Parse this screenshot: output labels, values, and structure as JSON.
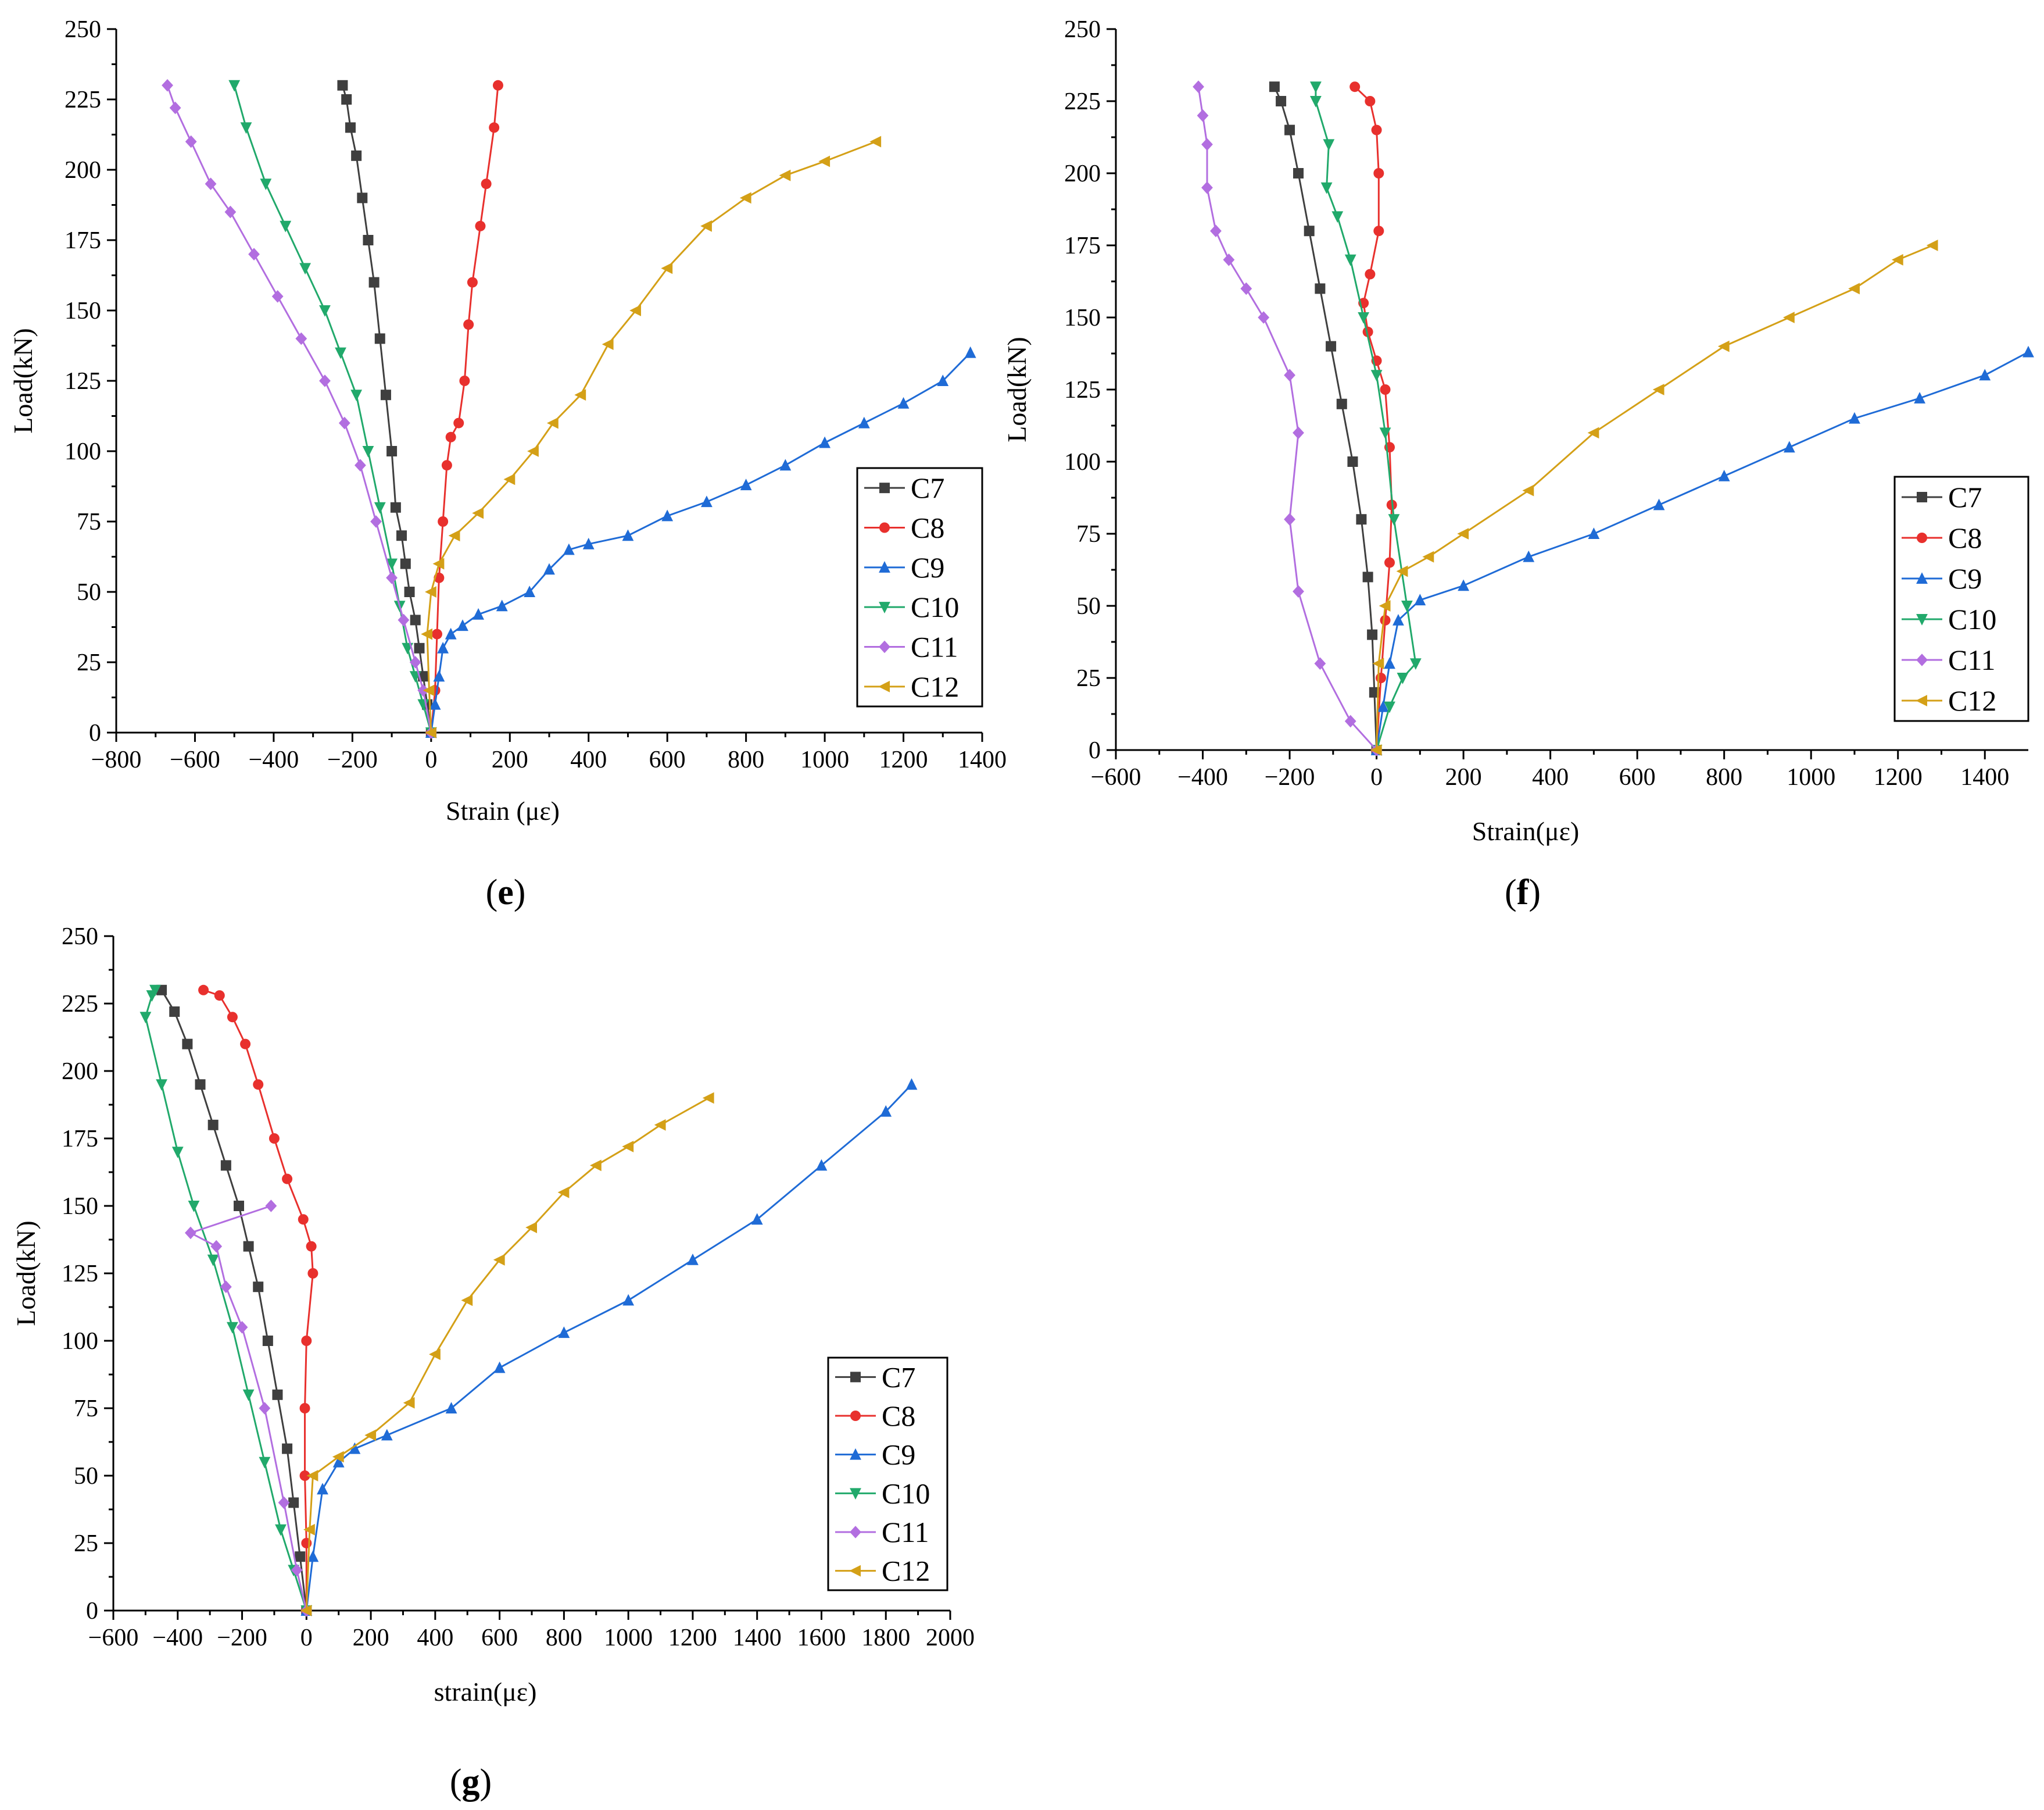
{
  "figure": {
    "series_names": [
      "C7",
      "C8",
      "C9",
      "C10",
      "C11",
      "C12"
    ],
    "series_colors": [
      "#3f3f3f",
      "#e8302d",
      "#1f6bd6",
      "#21a96b",
      "#b26ee0",
      "#d4a017"
    ],
    "series_markers": [
      "square",
      "circle",
      "triangle-up",
      "triangle-down",
      "diamond",
      "triangle-left"
    ]
  },
  "chart_data": [
    {
      "type": "line",
      "panel": "e",
      "xlabel": "Strain (με)",
      "ylabel": "Load(kN)",
      "xlim": [
        -800,
        1400
      ],
      "ylim": [
        0,
        250
      ],
      "xticks": [
        -800,
        -600,
        -400,
        -200,
        0,
        200,
        400,
        600,
        800,
        1000,
        1200,
        1400
      ],
      "yticks": [
        0,
        25,
        50,
        75,
        100,
        125,
        150,
        175,
        200,
        225,
        250
      ],
      "legend": "bottom-right",
      "series": [
        {
          "name": "C7",
          "x": [
            0,
            -10,
            -20,
            -30,
            -40,
            -55,
            -65,
            -75,
            -90,
            -100,
            -115,
            -130,
            -145,
            -160,
            -175,
            -190,
            -205,
            -215,
            -225
          ],
          "y": [
            0,
            10,
            20,
            30,
            40,
            50,
            60,
            70,
            80,
            100,
            120,
            140,
            160,
            175,
            190,
            205,
            215,
            225,
            230
          ]
        },
        {
          "name": "C8",
          "x": [
            0,
            10,
            15,
            20,
            30,
            40,
            50,
            70,
            85,
            95,
            105,
            125,
            140,
            160,
            170
          ],
          "y": [
            0,
            15,
            35,
            55,
            75,
            95,
            105,
            110,
            125,
            145,
            160,
            180,
            195,
            215,
            230
          ]
        },
        {
          "name": "C9",
          "x": [
            0,
            10,
            20,
            30,
            50,
            80,
            120,
            180,
            250,
            300,
            350,
            400,
            500,
            600,
            700,
            800,
            900,
            1000,
            1100,
            1200,
            1300,
            1370
          ],
          "y": [
            0,
            10,
            20,
            30,
            35,
            38,
            42,
            45,
            50,
            58,
            65,
            67,
            70,
            77,
            82,
            88,
            95,
            103,
            110,
            117,
            125,
            135
          ]
        },
        {
          "name": "C10",
          "x": [
            0,
            -20,
            -40,
            -60,
            -80,
            -100,
            -130,
            -160,
            -190,
            -230,
            -270,
            -320,
            -370,
            -420,
            -470,
            -500
          ],
          "y": [
            0,
            10,
            20,
            30,
            45,
            60,
            80,
            100,
            120,
            135,
            150,
            165,
            180,
            195,
            215,
            230
          ]
        },
        {
          "name": "C11",
          "x": [
            0,
            -20,
            -40,
            -70,
            -100,
            -140,
            -180,
            -220,
            -270,
            -330,
            -390,
            -450,
            -510,
            -560,
            -610,
            -650,
            -670
          ],
          "y": [
            0,
            15,
            25,
            40,
            55,
            75,
            95,
            110,
            125,
            140,
            155,
            170,
            185,
            195,
            210,
            222,
            230
          ]
        },
        {
          "name": "C12",
          "x": [
            0,
            -5,
            -10,
            0,
            20,
            60,
            120,
            200,
            260,
            310,
            380,
            450,
            520,
            600,
            700,
            800,
            900,
            1000,
            1130
          ],
          "y": [
            0,
            15,
            35,
            50,
            60,
            70,
            78,
            90,
            100,
            110,
            120,
            138,
            150,
            165,
            180,
            190,
            198,
            203,
            210
          ]
        }
      ]
    },
    {
      "type": "line",
      "panel": "f",
      "xlabel": "Strain(με)",
      "ylabel": "Load(kN)",
      "xlim": [
        -600,
        1500
      ],
      "ylim": [
        0,
        250
      ],
      "xticks": [
        -600,
        -400,
        -200,
        0,
        200,
        400,
        600,
        800,
        1000,
        1200,
        1400
      ],
      "yticks": [
        0,
        25,
        50,
        75,
        100,
        125,
        150,
        175,
        200,
        225,
        250
      ],
      "legend": "bottom-right",
      "series": [
        {
          "name": "C7",
          "x": [
            0,
            -5,
            -10,
            -20,
            -35,
            -55,
            -80,
            -105,
            -130,
            -155,
            -180,
            -200,
            -220,
            -235
          ],
          "y": [
            0,
            20,
            40,
            60,
            80,
            100,
            120,
            140,
            160,
            180,
            200,
            215,
            225,
            230
          ]
        },
        {
          "name": "C8",
          "x": [
            0,
            10,
            20,
            30,
            35,
            30,
            20,
            0,
            -20,
            -30,
            -15,
            5,
            5,
            0,
            -15,
            -50
          ],
          "y": [
            0,
            25,
            45,
            65,
            85,
            105,
            125,
            135,
            145,
            155,
            165,
            180,
            200,
            215,
            225,
            230
          ]
        },
        {
          "name": "C9",
          "x": [
            0,
            15,
            30,
            50,
            100,
            200,
            350,
            500,
            650,
            800,
            950,
            1100,
            1250,
            1400,
            1500
          ],
          "y": [
            0,
            15,
            30,
            45,
            52,
            57,
            67,
            75,
            85,
            95,
            105,
            115,
            122,
            130,
            138
          ]
        },
        {
          "name": "C10",
          "x": [
            0,
            30,
            60,
            90,
            70,
            40,
            20,
            0,
            -30,
            -60,
            -90,
            -115,
            -110,
            -140,
            -140
          ],
          "y": [
            0,
            15,
            25,
            30,
            50,
            80,
            110,
            130,
            150,
            170,
            185,
            195,
            210,
            225,
            230
          ]
        },
        {
          "name": "C11",
          "x": [
            0,
            -60,
            -130,
            -180,
            -200,
            -180,
            -200,
            -260,
            -300,
            -340,
            -370,
            -390,
            -390,
            -400,
            -410
          ],
          "y": [
            0,
            10,
            30,
            55,
            80,
            110,
            130,
            150,
            160,
            170,
            180,
            195,
            210,
            220,
            230
          ]
        },
        {
          "name": "C12",
          "x": [
            0,
            5,
            20,
            60,
            120,
            200,
            350,
            500,
            650,
            800,
            950,
            1100,
            1200,
            1280
          ],
          "y": [
            0,
            30,
            50,
            62,
            67,
            75,
            90,
            110,
            125,
            140,
            150,
            160,
            170,
            175
          ]
        }
      ]
    },
    {
      "type": "line",
      "panel": "g",
      "xlabel": "strain(με)",
      "ylabel": "Load(kN)",
      "xlim": [
        -600,
        2000
      ],
      "ylim": [
        0,
        250
      ],
      "xticks": [
        -600,
        -400,
        -200,
        0,
        200,
        400,
        600,
        800,
        1000,
        1200,
        1400,
        1600,
        1800,
        2000
      ],
      "yticks": [
        0,
        25,
        50,
        75,
        100,
        125,
        150,
        175,
        200,
        225,
        250
      ],
      "legend": "bottom-right",
      "series": [
        {
          "name": "C7",
          "x": [
            0,
            -20,
            -40,
            -60,
            -90,
            -120,
            -150,
            -180,
            -210,
            -250,
            -290,
            -330,
            -370,
            -410,
            -450
          ],
          "y": [
            0,
            20,
            40,
            60,
            80,
            100,
            120,
            135,
            150,
            165,
            180,
            195,
            210,
            222,
            230
          ]
        },
        {
          "name": "C8",
          "x": [
            0,
            0,
            -5,
            -5,
            0,
            20,
            15,
            -10,
            -60,
            -100,
            -150,
            -190,
            -230,
            -270,
            -320
          ],
          "y": [
            0,
            25,
            50,
            75,
            100,
            125,
            135,
            145,
            160,
            175,
            195,
            210,
            220,
            228,
            230
          ]
        },
        {
          "name": "C9",
          "x": [
            0,
            20,
            50,
            100,
            150,
            250,
            450,
            600,
            800,
            1000,
            1200,
            1400,
            1600,
            1800,
            1880
          ],
          "y": [
            0,
            20,
            45,
            55,
            60,
            65,
            75,
            90,
            103,
            115,
            130,
            145,
            165,
            185,
            195
          ]
        },
        {
          "name": "C10",
          "x": [
            0,
            -40,
            -80,
            -130,
            -180,
            -230,
            -290,
            -350,
            -400,
            -450,
            -500,
            -480,
            -470
          ],
          "y": [
            0,
            15,
            30,
            55,
            80,
            105,
            130,
            150,
            170,
            195,
            220,
            228,
            230
          ]
        },
        {
          "name": "C11",
          "x": [
            0,
            -30,
            -70,
            -130,
            -200,
            -250,
            -280,
            -360,
            -110
          ],
          "y": [
            0,
            15,
            40,
            75,
            105,
            120,
            135,
            140,
            150
          ]
        },
        {
          "name": "C12",
          "x": [
            0,
            10,
            20,
            100,
            200,
            320,
            400,
            500,
            600,
            700,
            800,
            900,
            1000,
            1100,
            1250
          ],
          "y": [
            0,
            30,
            50,
            57,
            65,
            77,
            95,
            115,
            130,
            142,
            155,
            165,
            172,
            180,
            190
          ]
        }
      ]
    }
  ],
  "panel_labels": [
    "(e)",
    "(f)",
    "(g)"
  ]
}
